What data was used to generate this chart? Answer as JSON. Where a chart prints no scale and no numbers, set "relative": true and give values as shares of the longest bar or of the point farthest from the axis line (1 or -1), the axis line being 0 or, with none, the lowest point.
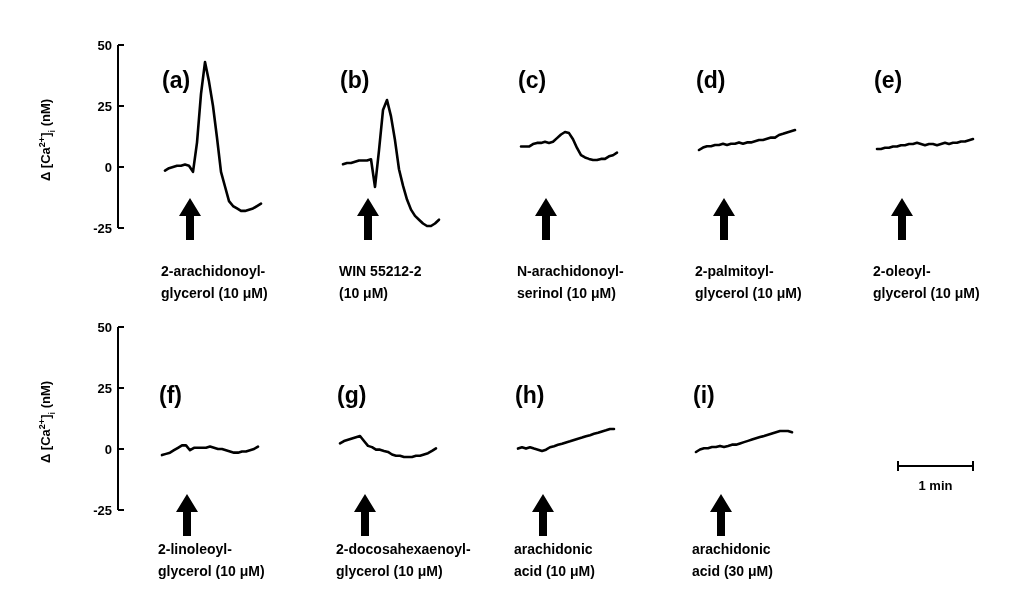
{
  "chart_data": [
    {
      "type": "line",
      "title": "(a)",
      "ylabel": "Δ [Ca$^{2+}$]$_{i}$ (nM)",
      "ylim": [
        -25,
        50
      ],
      "yticks": [
        -25,
        0,
        25,
        50
      ],
      "tick_labels": "y",
      "categories": [
        null,
        null,
        null,
        null,
        null,
        null,
        null,
        null,
        null,
        null,
        null,
        null,
        null,
        null,
        null,
        null,
        null,
        null,
        null,
        null,
        null,
        null,
        null,
        null,
        null
      ],
      "series": [
        {
          "name": "2-arachidonoyl-\nglycerol (10 μM)",
          "color": "#000000",
          "values": [
            -1.5,
            -0.5,
            0,
            0.5,
            0.5,
            1,
            0.5,
            -2,
            10,
            30,
            43,
            35,
            25,
            12,
            -2,
            -8,
            -14,
            -16,
            -17,
            -18,
            -18,
            -17.5,
            -17,
            -16,
            -15
          ]
        }
      ]
    },
    {
      "type": "line",
      "title": "(b)",
      "relative": true,
      "categories": [
        null,
        null,
        null,
        null,
        null,
        null,
        null,
        null,
        null,
        null,
        null,
        null,
        null,
        null,
        null,
        null,
        null,
        null,
        null,
        null,
        null,
        null,
        null,
        null,
        null
      ],
      "series": [
        {
          "name": "WIN 55212-2\n(10 μM)",
          "color": "#000000",
          "values": [
            0.49,
            0.5,
            0.5,
            0.51,
            0.52,
            0.52,
            0.52,
            0.53,
            0.31,
            0.6,
            0.92,
            1,
            0.87,
            0.68,
            0.45,
            0.32,
            0.21,
            0.13,
            0.08,
            0.05,
            0.02,
            0,
            0,
            0.02,
            0.05
          ]
        }
      ]
    },
    {
      "type": "line",
      "title": "(c)",
      "relative": true,
      "categories": [
        null,
        null,
        null,
        null,
        null,
        null,
        null,
        null,
        null,
        null,
        null,
        null,
        null,
        null,
        null,
        null,
        null,
        null,
        null,
        null,
        null,
        null,
        null,
        null,
        null
      ],
      "series": [
        {
          "name": "N-arachidonoyl-\nserinol (10 μM)",
          "color": "#000000",
          "values": [
            0.48,
            0.48,
            0.48,
            0.57,
            0.61,
            0.61,
            0.65,
            0.61,
            0.65,
            0.78,
            0.91,
            1,
            0.96,
            0.74,
            0.43,
            0.17,
            0.09,
            0.04,
            0,
            0,
            0.04,
            0.04,
            0.13,
            0.17,
            0.26
          ]
        }
      ]
    },
    {
      "type": "line",
      "title": "(d)",
      "relative": true,
      "categories": [
        null,
        null,
        null,
        null,
        null,
        null,
        null,
        null,
        null,
        null,
        null,
        null,
        null,
        null,
        null,
        null,
        null,
        null,
        null,
        null,
        null,
        null,
        null,
        null,
        null
      ],
      "series": [
        {
          "name": "2-palmitoyl-\nglycerol (10 μM)",
          "color": "#000000",
          "values": [
            0,
            0.12,
            0.19,
            0.19,
            0.25,
            0.25,
            0.31,
            0.25,
            0.31,
            0.31,
            0.38,
            0.31,
            0.38,
            0.38,
            0.44,
            0.5,
            0.5,
            0.56,
            0.62,
            0.62,
            0.75,
            0.81,
            0.88,
            0.94,
            1
          ]
        }
      ]
    },
    {
      "type": "line",
      "title": "(e)",
      "relative": true,
      "categories": [
        null,
        null,
        null,
        null,
        null,
        null,
        null,
        null,
        null,
        null,
        null,
        null,
        null,
        null,
        null,
        null,
        null,
        null,
        null,
        null,
        null,
        null,
        null,
        null,
        null
      ],
      "series": [
        {
          "name": "2-oleoyl-\nglycerol (10 μM)",
          "color": "#000000",
          "values": [
            0,
            0,
            0.12,
            0.12,
            0.25,
            0.25,
            0.38,
            0.38,
            0.5,
            0.5,
            0.62,
            0.5,
            0.38,
            0.5,
            0.5,
            0.38,
            0.5,
            0.62,
            0.5,
            0.62,
            0.62,
            0.75,
            0.75,
            0.88,
            1
          ]
        }
      ]
    },
    {
      "type": "line",
      "title": "(f)",
      "ylabel": "Δ [Ca$^{2+}$]$_{i}$ (nM)",
      "ylim": [
        -25,
        50
      ],
      "yticks": [
        -25,
        0,
        25,
        50
      ],
      "tick_labels": "y",
      "categories": [
        null,
        null,
        null,
        null,
        null,
        null,
        null,
        null,
        null,
        null,
        null,
        null,
        null,
        null,
        null,
        null,
        null,
        null,
        null,
        null,
        null,
        null,
        null,
        null,
        null
      ],
      "series": [
        {
          "name": "2-linoleoyl-\nglycerol (10 μM)",
          "color": "#000000",
          "values": [
            -2.5,
            -2,
            -1.5,
            -0.5,
            0.5,
            1.5,
            1.5,
            -0.5,
            0.5,
            0.5,
            0.5,
            0.5,
            1,
            0.5,
            0,
            0,
            -0.5,
            -1,
            -1.5,
            -1.5,
            -1,
            -1,
            -0.5,
            0,
            1
          ]
        }
      ]
    },
    {
      "type": "line",
      "title": "(g)",
      "relative": true,
      "categories": [
        null,
        null,
        null,
        null,
        null,
        null,
        null,
        null,
        null,
        null,
        null,
        null,
        null,
        null,
        null,
        null,
        null,
        null,
        null,
        null,
        null,
        null,
        null,
        null,
        null
      ],
      "series": [
        {
          "name": "2-docosahexaenoyl-\nglycerol (10 μM)",
          "color": "#000000",
          "values": [
            0.65,
            0.76,
            0.82,
            0.88,
            0.94,
            1,
            0.76,
            0.53,
            0.47,
            0.35,
            0.35,
            0.29,
            0.24,
            0.12,
            0.06,
            0.06,
            0,
            0,
            0,
            0.06,
            0.06,
            0.12,
            0.18,
            0.29,
            0.41
          ]
        }
      ]
    },
    {
      "type": "line",
      "title": "(h)",
      "relative": true,
      "categories": [
        null,
        null,
        null,
        null,
        null,
        null,
        null,
        null,
        null,
        null,
        null,
        null,
        null,
        null,
        null,
        null,
        null,
        null,
        null,
        null,
        null,
        null,
        null,
        null,
        null
      ],
      "series": [
        {
          "name": "arachidonic\nacid (10 μM)",
          "color": "#000000",
          "values": [
            0.11,
            0.17,
            0.11,
            0.17,
            0.11,
            0.06,
            0,
            0.06,
            0.17,
            0.22,
            0.28,
            0.33,
            0.39,
            0.44,
            0.5,
            0.56,
            0.61,
            0.67,
            0.72,
            0.78,
            0.83,
            0.89,
            0.94,
            1,
            1
          ]
        }
      ]
    },
    {
      "type": "line",
      "title": "(i)",
      "relative": true,
      "annotations": [
        "1 min"
      ],
      "categories": [
        null,
        null,
        null,
        null,
        null,
        null,
        null,
        null,
        null,
        null,
        null,
        null,
        null,
        null,
        null,
        null,
        null,
        null,
        null,
        null,
        null,
        null,
        null,
        null,
        null
      ],
      "series": [
        {
          "name": "arachidonic\nacid (30 μM)",
          "color": "#000000",
          "values": [
            0,
            0.12,
            0.18,
            0.18,
            0.24,
            0.24,
            0.29,
            0.24,
            0.29,
            0.35,
            0.35,
            0.41,
            0.47,
            0.53,
            0.59,
            0.65,
            0.71,
            0.76,
            0.82,
            0.88,
            0.94,
            1,
            1,
            1,
            0.94
          ]
        }
      ]
    }
  ]
}
